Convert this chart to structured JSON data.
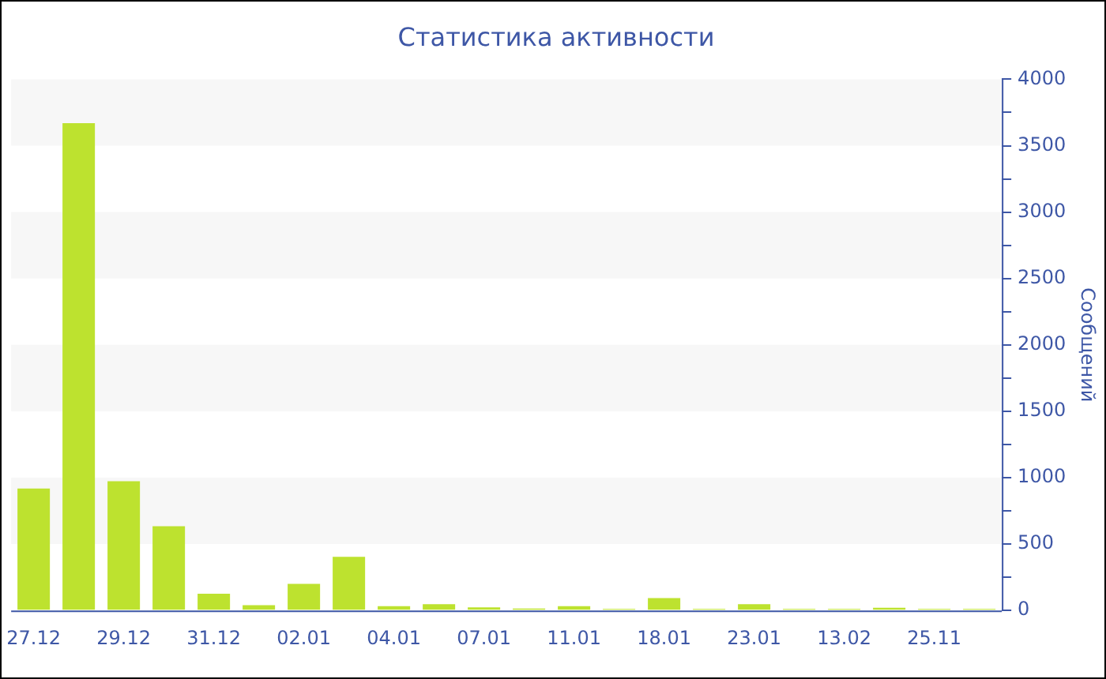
{
  "chart_data": {
    "type": "bar",
    "title": "Статистика активности",
    "ylabel": "Сообщений",
    "categories": [
      "27.12",
      null,
      "29.12",
      null,
      "31.12",
      null,
      "02.01",
      null,
      "04.01",
      null,
      "07.01",
      null,
      "11.01",
      null,
      "18.01",
      null,
      "23.01",
      null,
      "13.02",
      null,
      "25.11",
      null
    ],
    "values": [
      918,
      3670,
      973,
      635,
      126,
      40,
      200,
      404,
      32,
      47,
      24,
      15,
      32,
      12,
      94,
      12,
      47,
      12,
      12,
      20,
      12,
      12
    ],
    "color": "#bde22f",
    "ylim": [
      0,
      4000
    ],
    "yticks": [
      0,
      {
        "value": 250,
        "label": null
      },
      500,
      {
        "value": 750,
        "label": null
      },
      1000,
      {
        "value": 1250,
        "label": null
      },
      1500,
      {
        "value": 1750,
        "label": null
      },
      2000,
      {
        "value": 2250,
        "label": null
      },
      2500,
      {
        "value": 2750,
        "label": null
      },
      3000,
      {
        "value": 3250,
        "label": null
      },
      3500,
      {
        "value": 3750,
        "label": null
      },
      4000
    ],
    "bands": [
      {
        "axis": "y",
        "from": 500,
        "to": 1000,
        "color": "#f7f7f7"
      },
      {
        "axis": "y",
        "from": 1500,
        "to": 2000,
        "color": "#f7f7f7"
      },
      {
        "axis": "y",
        "from": 2500,
        "to": 3000,
        "color": "#f7f7f7"
      },
      {
        "axis": "y",
        "from": 3500,
        "to": 4000,
        "color": "#f7f7f7"
      }
    ],
    "legend": false
  }
}
